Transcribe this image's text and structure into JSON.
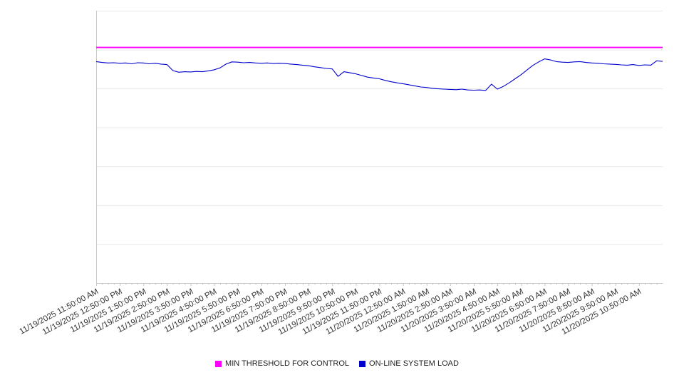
{
  "chart_data": {
    "type": "line",
    "title": "",
    "xlabel": "",
    "ylabel": "",
    "ylim": [
      0,
      100
    ],
    "y_tick_labels_visible": false,
    "grid": "horizontal",
    "h_gridlines": 8,
    "legend_position": "bottom-center",
    "x_hours_span": 24,
    "x_labels": [
      "11/19/2025 11:50:00 AM",
      "11/19/2025 12:50:00 PM",
      "11/19/2025 1:50:00 PM",
      "11/19/2025 2:50:00 PM",
      "11/19/2025 3:50:00 PM",
      "11/19/2025 4:50:00 PM",
      "11/19/2025 5:50:00 PM",
      "11/19/2025 6:50:00 PM",
      "11/19/2025 7:50:00 PM",
      "11/19/2025 8:50:00 PM",
      "11/19/2025 9:50:00 PM",
      "11/19/2025 10:50:00 PM",
      "11/19/2025 11:50:00 PM",
      "11/20/2025 12:50:00 AM",
      "11/20/2025 1:50:00 AM",
      "11/20/2025 2:50:00 AM",
      "11/20/2025 3:50:00 AM",
      "11/20/2025 4:50:00 AM",
      "11/20/2025 5:50:00 AM",
      "11/20/2025 6:50:00 AM",
      "11/20/2025 7:50:00 AM",
      "11/20/2025 8:50:00 AM",
      "11/20/2025 9:50:00 AM",
      "11/20/2025 10:50:00 AM"
    ],
    "series": [
      {
        "name": "MIN THRESHOLD FOR CONTROL",
        "color": "#ff00ff",
        "style": "constant",
        "value": 86.5
      },
      {
        "name": "ON-LINE SYSTEM LOAD",
        "color": "#0000cc",
        "style": "line",
        "interval_minutes": 15,
        "values": [
          81.3,
          81.0,
          80.8,
          80.9,
          80.7,
          80.8,
          80.5,
          80.9,
          80.8,
          80.5,
          80.7,
          80.4,
          80.2,
          78.0,
          77.4,
          77.6,
          77.5,
          77.7,
          77.6,
          77.9,
          78.3,
          79.0,
          80.4,
          81.2,
          81.1,
          80.9,
          81.0,
          80.8,
          80.7,
          80.8,
          80.6,
          80.7,
          80.6,
          80.4,
          80.2,
          80.0,
          79.8,
          79.4,
          79.1,
          78.8,
          78.6,
          75.9,
          77.6,
          77.2,
          76.8,
          76.2,
          75.6,
          75.3,
          75.0,
          74.4,
          73.9,
          73.5,
          73.2,
          72.8,
          72.4,
          72.0,
          71.8,
          71.5,
          71.3,
          71.2,
          71.1,
          71.0,
          71.2,
          70.9,
          70.8,
          70.9,
          70.7,
          73.0,
          71.2,
          72.2,
          73.5,
          75.0,
          76.5,
          78.2,
          79.9,
          81.2,
          82.3,
          81.9,
          81.3,
          81.1,
          81.0,
          81.2,
          81.3,
          81.0,
          80.8,
          80.7,
          80.5,
          80.4,
          80.3,
          80.1,
          80.0,
          80.2,
          79.9,
          80.1,
          80.0,
          81.6,
          81.4
        ]
      }
    ],
    "colors": {
      "grid": "#e8e8e8",
      "axis": "#c8c8c8",
      "tick_text": "#333333",
      "legend_text": "#222222",
      "background": "#ffffff"
    }
  }
}
